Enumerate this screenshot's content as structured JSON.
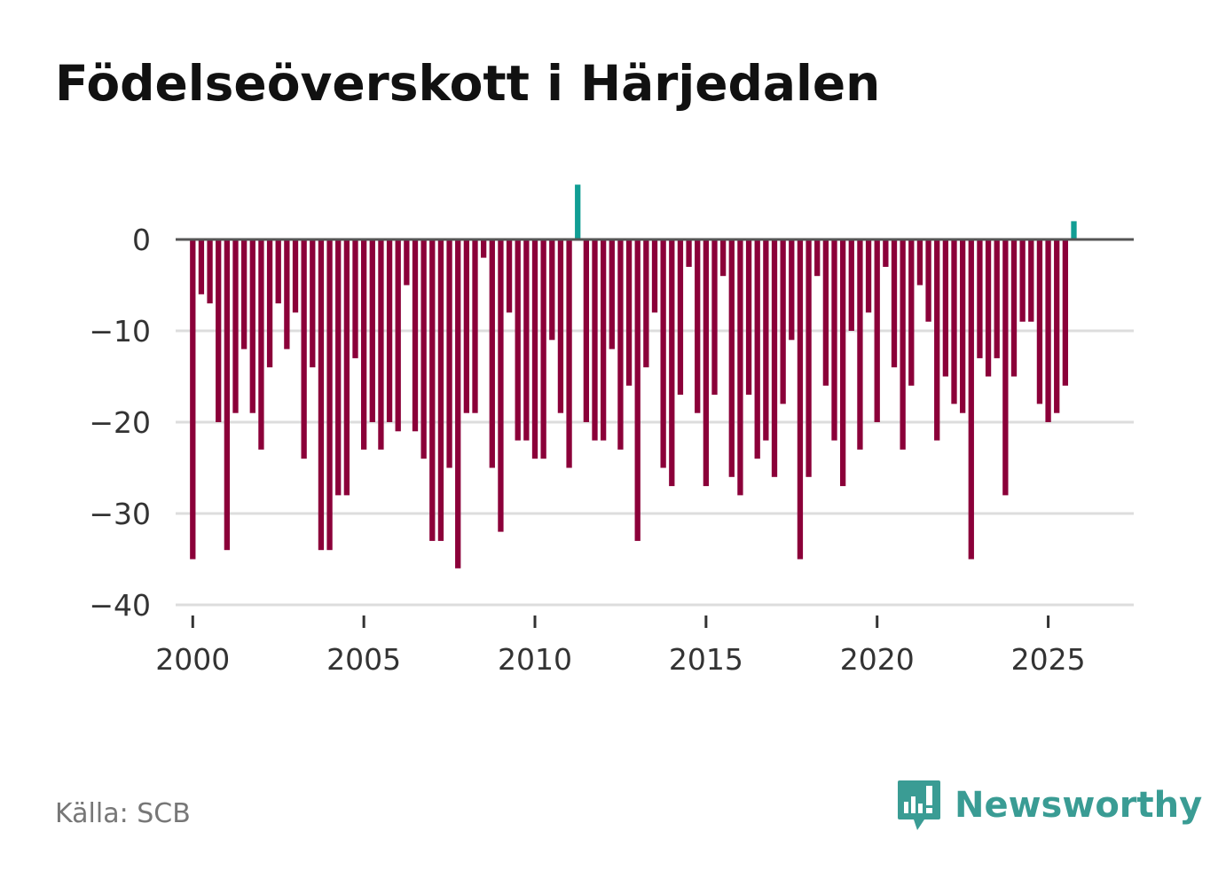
{
  "title": "Födelseöverskott i Härjedalen",
  "source": "Källa: SCB",
  "brand": {
    "name": "Newsworthy",
    "icon": "newsworthy-logo-icon",
    "color": "#3a9c94"
  },
  "colors": {
    "negative": "#8b0039",
    "positive": "#119e94",
    "grid": "#dddddd",
    "zero_line": "#555555"
  },
  "chart_data": {
    "type": "bar",
    "title": "Födelseöverskott i Härjedalen",
    "xlabel": "",
    "ylabel": "",
    "ylim": [
      -40,
      6
    ],
    "xlim": [
      1999.5,
      2027.5
    ],
    "y_ticks": [
      0,
      -10,
      -20,
      -30,
      -40
    ],
    "y_tick_labels": [
      "0",
      "−10",
      "−20",
      "−30",
      "−40"
    ],
    "x_ticks": [
      2000,
      2005,
      2010,
      2015,
      2020,
      2025
    ],
    "x_tick_labels": [
      "2000",
      "2005",
      "2010",
      "2015",
      "2020",
      "2025"
    ],
    "x_start": 2000.0,
    "x_step": 0.25,
    "frequency": "quarterly",
    "values": [
      -35,
      -6,
      -7,
      -20,
      -34,
      -19,
      -12,
      -19,
      -23,
      -14,
      -7,
      -12,
      -8,
      -24,
      -14,
      -34,
      -34,
      -28,
      -28,
      -13,
      -23,
      -20,
      -23,
      -20,
      -21,
      -5,
      -21,
      -24,
      -33,
      -33,
      -25,
      -36,
      -19,
      -19,
      -2,
      -25,
      -32,
      -8,
      -22,
      -22,
      -24,
      -24,
      -11,
      -19,
      -25,
      6,
      -20,
      -22,
      -22,
      -12,
      -23,
      -16,
      -33,
      -14,
      -8,
      -25,
      -27,
      -17,
      -3,
      -19,
      -27,
      -17,
      -4,
      -26,
      -28,
      -17,
      -24,
      -22,
      -26,
      -18,
      -11,
      -35,
      -26,
      -4,
      -16,
      -22,
      -27,
      -10,
      -23,
      -8,
      -20,
      -3,
      -14,
      -23,
      -16,
      -5,
      -9,
      -22,
      -15,
      -18,
      -19,
      -35,
      -13,
      -15,
      -13,
      -28,
      -15,
      -9,
      -9,
      -18,
      -20,
      -19,
      -16,
      2
    ]
  }
}
